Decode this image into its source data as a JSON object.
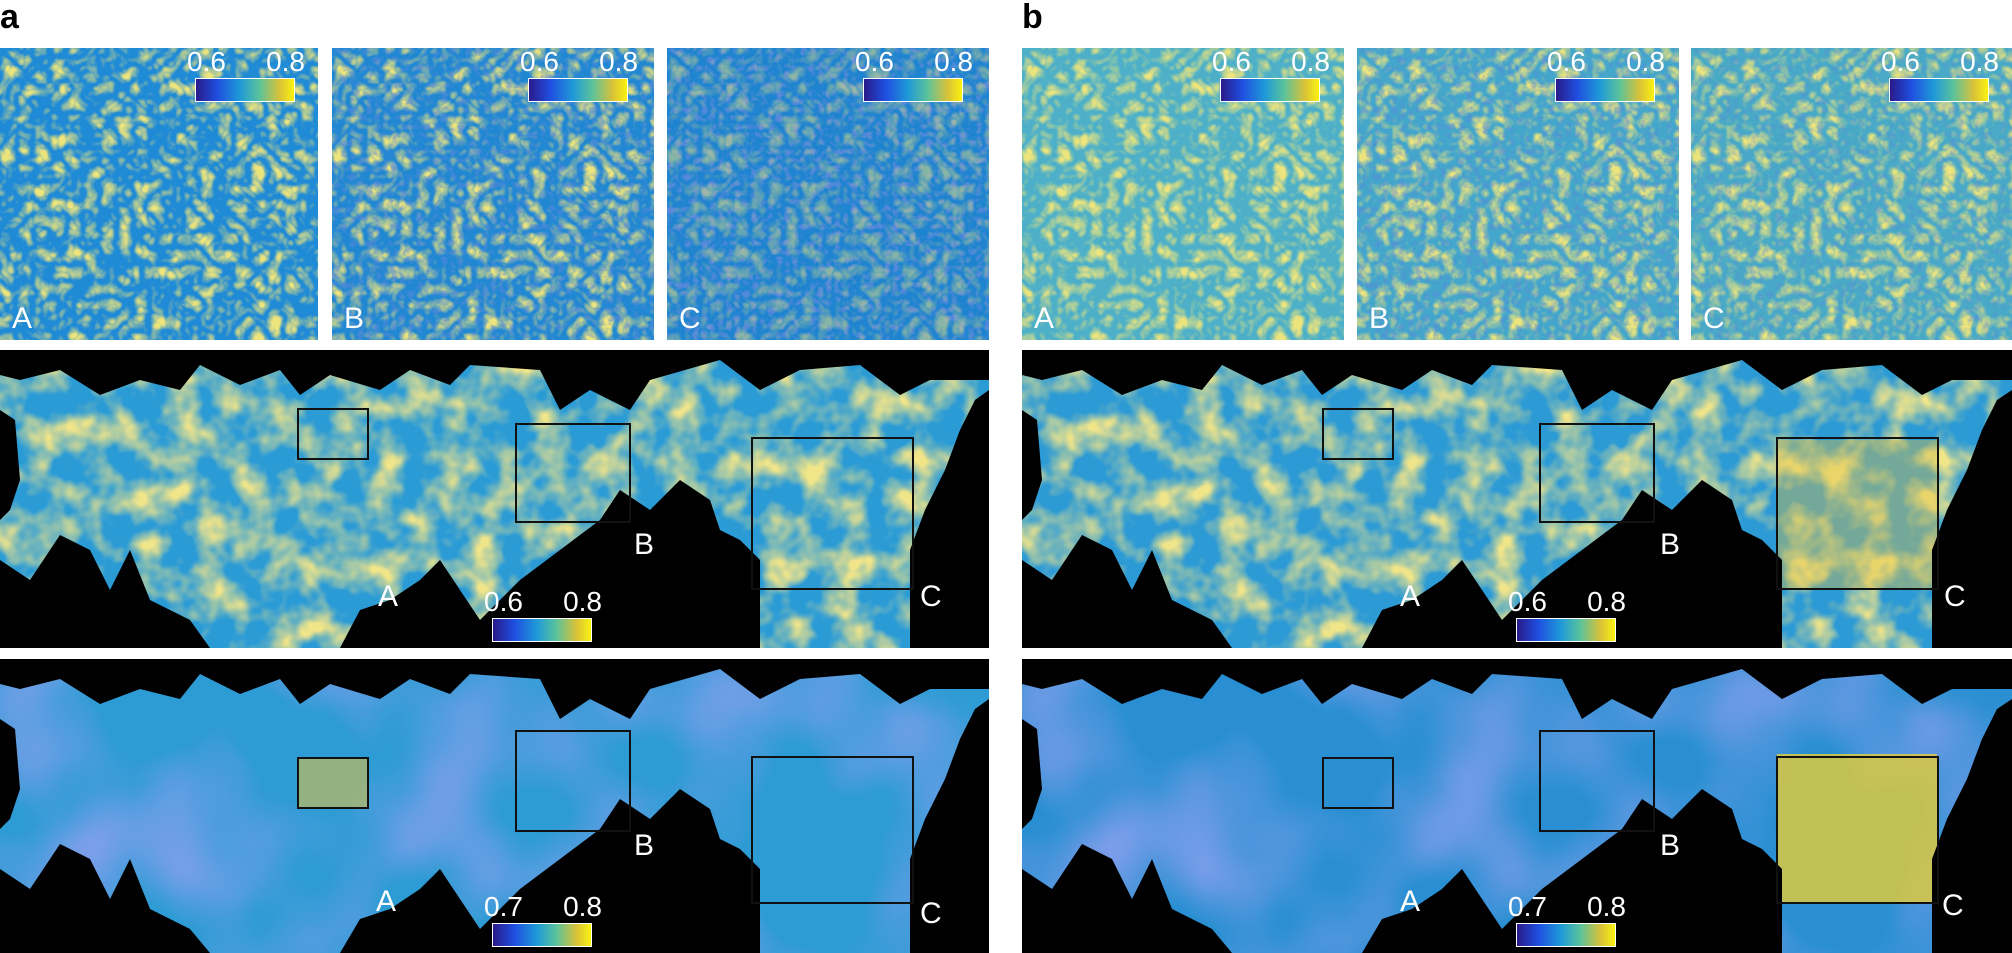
{
  "figure": {
    "panels": [
      {
        "label": "a",
        "insets": [
          {
            "label": "A",
            "colorbar": {
              "min": "0.6",
              "max": "0.8"
            }
          },
          {
            "label": "B",
            "colorbar": {
              "min": "0.6",
              "max": "0.8"
            }
          },
          {
            "label": "C",
            "colorbar": {
              "min": "0.6",
              "max": "0.8"
            }
          }
        ],
        "maps": [
          {
            "colorbar": {
              "min": "0.6",
              "max": "0.8"
            },
            "regions": [
              "A",
              "B",
              "C"
            ]
          },
          {
            "colorbar": {
              "min": "0.7",
              "max": "0.8"
            },
            "regions": [
              "A",
              "B",
              "C"
            ]
          }
        ]
      },
      {
        "label": "b",
        "insets": [
          {
            "label": "A",
            "colorbar": {
              "min": "0.6",
              "max": "0.8"
            }
          },
          {
            "label": "B",
            "colorbar": {
              "min": "0.6",
              "max": "0.8"
            }
          },
          {
            "label": "C",
            "colorbar": {
              "min": "0.6",
              "max": "0.8"
            }
          }
        ],
        "maps": [
          {
            "colorbar": {
              "min": "0.6",
              "max": "0.8"
            },
            "regions": [
              "A",
              "B",
              "C"
            ]
          },
          {
            "colorbar": {
              "min": "0.7",
              "max": "0.8"
            },
            "regions": [
              "A",
              "B",
              "C"
            ]
          }
        ]
      }
    ]
  }
}
